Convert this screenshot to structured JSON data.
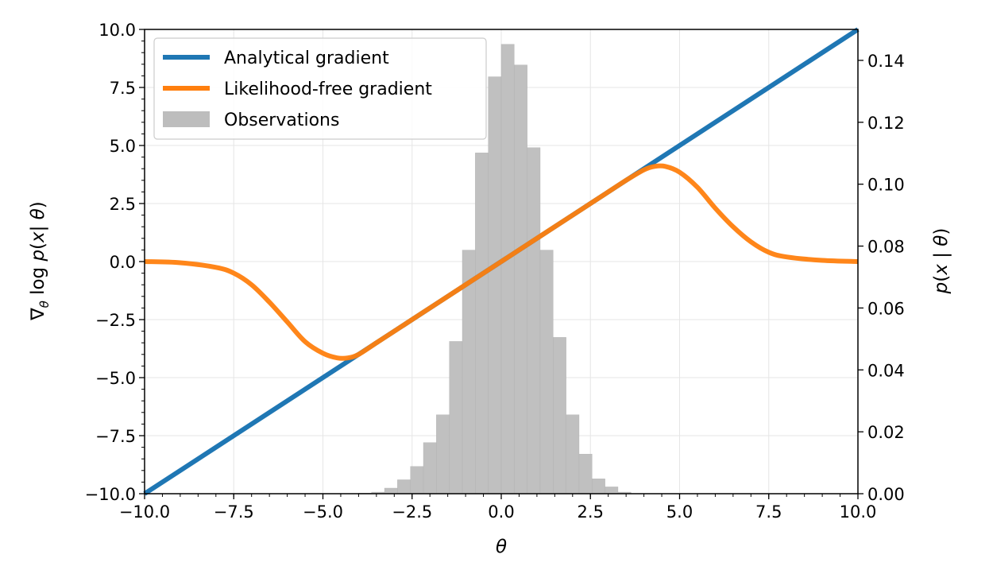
{
  "chart_data": {
    "type": "line",
    "x_range": [
      -10,
      10
    ],
    "y_left_range": [
      -10,
      10
    ],
    "y_right_range": [
      0,
      0.15
    ],
    "x_ticks": [
      "-10.0",
      "-7.5",
      "-5.0",
      "-2.5",
      "0.0",
      "2.5",
      "5.0",
      "7.5",
      "10.0"
    ],
    "x_tick_values": [
      -10,
      -7.5,
      -5,
      -2.5,
      0,
      2.5,
      5,
      7.5,
      10
    ],
    "y_left_ticks": [
      "-10.0",
      "-7.5",
      "-5.0",
      "-2.5",
      "0.0",
      "2.5",
      "5.0",
      "7.5",
      "10.0"
    ],
    "y_left_tick_values": [
      -10,
      -7.5,
      -5,
      -2.5,
      0,
      2.5,
      5,
      7.5,
      10
    ],
    "y_right_ticks": [
      "0.00",
      "0.02",
      "0.04",
      "0.06",
      "0.08",
      "0.10",
      "0.12",
      "0.14"
    ],
    "y_right_tick_values": [
      0,
      0.02,
      0.04,
      0.06,
      0.08,
      0.1,
      0.12,
      0.14
    ],
    "xlabel": "θ",
    "ylabel_left": "∇θ log p(x| θ)",
    "ylabel_right": "p(x | θ)",
    "grid": true,
    "legend_position": "upper-left",
    "legend": [
      {
        "label": "Analytical gradient",
        "color": "#1f77b4",
        "kind": "line"
      },
      {
        "label": "Likelihood-free gradient",
        "color": "#ff7f0e",
        "kind": "line"
      },
      {
        "label": "Observations",
        "color": "#bdbdbd",
        "kind": "patch"
      }
    ],
    "series": [
      {
        "name": "Analytical gradient",
        "color": "#1f77b4",
        "axis": "left",
        "x": [
          -10,
          10
        ],
        "y": [
          -10,
          10
        ]
      },
      {
        "name": "Likelihood-free gradient",
        "color": "#ff7f0e",
        "axis": "left",
        "x": [
          -10,
          -9,
          -8,
          -7.5,
          -7,
          -6.5,
          -6,
          -5.5,
          -5,
          -4.6,
          -4.3,
          -4,
          -3.5,
          -3,
          -2,
          -1,
          0,
          1,
          2,
          3,
          3.5,
          4,
          4.3,
          4.6,
          5,
          5.5,
          6,
          6.5,
          7,
          7.5,
          8,
          9,
          10
        ],
        "y": [
          0,
          -0.05,
          -0.25,
          -0.5,
          -1.0,
          -1.75,
          -2.6,
          -3.45,
          -3.95,
          -4.15,
          -4.15,
          -4.0,
          -3.5,
          -3.0,
          -2.0,
          -1.0,
          0,
          1.0,
          2.0,
          3.0,
          3.5,
          3.95,
          4.1,
          4.1,
          3.85,
          3.2,
          2.3,
          1.5,
          0.85,
          0.4,
          0.2,
          0.05,
          0
        ]
      }
    ],
    "histogram": {
      "name": "Observations",
      "color": "#bdbdbd",
      "axis": "right",
      "bin_width": 0.3636,
      "bins_start": [
        -4.0,
        -3.6364,
        -3.2727,
        -2.9091,
        -2.5455,
        -2.1818,
        -1.8182,
        -1.4545,
        -1.0909,
        -0.7273,
        -0.3636,
        0.0,
        0.3636,
        0.7273,
        1.0909,
        1.4545,
        1.8182,
        2.1818,
        2.5455,
        2.9091,
        3.2727
      ],
      "heights": [
        0.0002,
        0.0005,
        0.0018,
        0.0045,
        0.0088,
        0.0165,
        0.0255,
        0.0492,
        0.0787,
        0.1101,
        0.1347,
        0.1452,
        0.1385,
        0.1118,
        0.0787,
        0.0505,
        0.0255,
        0.0128,
        0.0048,
        0.0022,
        0.0005
      ]
    }
  }
}
